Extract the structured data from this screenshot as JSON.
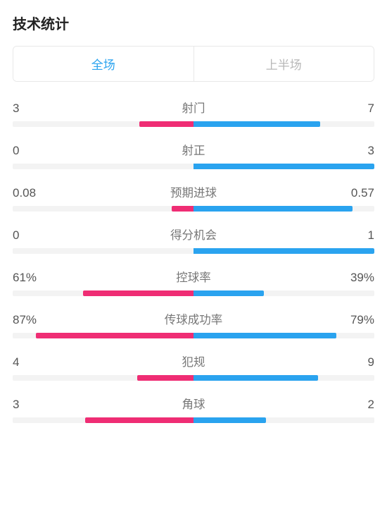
{
  "title": "技术统计",
  "colors": {
    "left_bar": "#ef2d74",
    "right_bar": "#2aa3ef",
    "track": "#f3f3f3",
    "active_tab": "#2aa3ef",
    "inactive_tab": "#b8b8b8",
    "text": "#555555",
    "title_text": "#222222"
  },
  "tabs": {
    "active": "全场",
    "inactive": "上半场"
  },
  "stats": [
    {
      "label": "射门",
      "left_display": "3",
      "right_display": "7",
      "left_pct": 30,
      "right_pct": 70
    },
    {
      "label": "射正",
      "left_display": "0",
      "right_display": "3",
      "left_pct": 0,
      "right_pct": 100
    },
    {
      "label": "预期进球",
      "left_display": "0.08",
      "right_display": "0.57",
      "left_pct": 12,
      "right_pct": 88
    },
    {
      "label": "得分机会",
      "left_display": "0",
      "right_display": "1",
      "left_pct": 0,
      "right_pct": 100
    },
    {
      "label": "控球率",
      "left_display": "61%",
      "right_display": "39%",
      "left_pct": 61,
      "right_pct": 39
    },
    {
      "label": "传球成功率",
      "left_display": "87%",
      "right_display": "79%",
      "left_pct": 87,
      "right_pct": 79
    },
    {
      "label": "犯规",
      "left_display": "4",
      "right_display": "9",
      "left_pct": 31,
      "right_pct": 69
    },
    {
      "label": "角球",
      "left_display": "3",
      "right_display": "2",
      "left_pct": 60,
      "right_pct": 40
    }
  ]
}
